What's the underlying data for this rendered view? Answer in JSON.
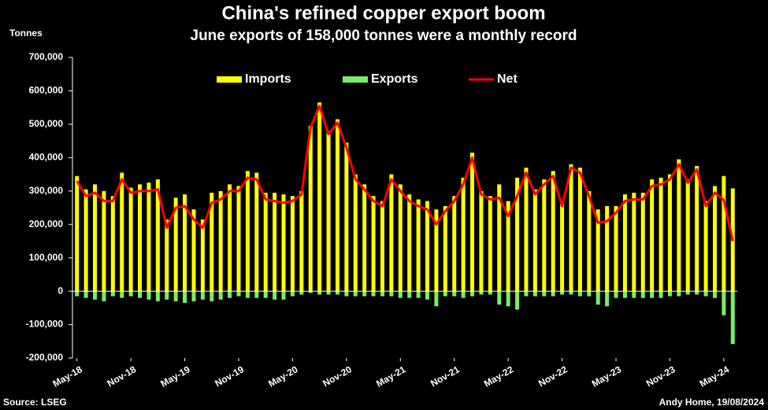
{
  "chart_data": {
    "type": "bar_line",
    "title": "China's refined copper export boom",
    "subtitle": "June exports of 158,000 tonnes were a monthly record",
    "y_axis_label": "Tonnes",
    "source": "Source: LSEG",
    "credit": "Andy Home, 19/08/2024",
    "categories": [
      "May-18",
      null,
      null,
      null,
      null,
      null,
      "Nov-18",
      null,
      null,
      null,
      null,
      null,
      "May-19",
      null,
      null,
      null,
      null,
      null,
      "Nov-19",
      null,
      null,
      null,
      null,
      null,
      "May-20",
      null,
      null,
      null,
      null,
      null,
      "Nov-20",
      null,
      null,
      null,
      null,
      null,
      "May-21",
      null,
      null,
      null,
      null,
      null,
      "Nov-21",
      null,
      null,
      null,
      null,
      null,
      "May-22",
      null,
      null,
      null,
      null,
      null,
      "Nov-22",
      null,
      null,
      null,
      null,
      null,
      "May-23",
      null,
      null,
      null,
      null,
      null,
      "Nov-23",
      null,
      null,
      null,
      null,
      null,
      "May-24",
      null
    ],
    "series": [
      {
        "name": "Imports",
        "kind": "bar",
        "color": "#ffff00",
        "values": [
          345000,
          305000,
          320000,
          300000,
          285000,
          355000,
          310000,
          320000,
          325000,
          335000,
          215000,
          280000,
          290000,
          245000,
          215000,
          295000,
          300000,
          320000,
          315000,
          360000,
          355000,
          295000,
          295000,
          290000,
          285000,
          300000,
          495000,
          565000,
          480000,
          515000,
          445000,
          350000,
          320000,
          285000,
          270000,
          350000,
          320000,
          290000,
          275000,
          270000,
          245000,
          255000,
          285000,
          340000,
          415000,
          300000,
          285000,
          320000,
          270000,
          340000,
          370000,
          305000,
          335000,
          360000,
          265000,
          380000,
          370000,
          300000,
          245000,
          255000,
          255000,
          290000,
          295000,
          295000,
          335000,
          340000,
          350000,
          395000,
          335000,
          375000,
          270000,
          315000,
          345000,
          308000
        ]
      },
      {
        "name": "Exports",
        "kind": "bar",
        "color": "#77ee66",
        "values": [
          -15000,
          -20000,
          -25000,
          -30000,
          -15000,
          -20000,
          -15000,
          -20000,
          -25000,
          -30000,
          -25000,
          -30000,
          -35000,
          -30000,
          -25000,
          -30000,
          -25000,
          -20000,
          -15000,
          -20000,
          -20000,
          -20000,
          -25000,
          -25000,
          -15000,
          -10000,
          -5000,
          -10000,
          -10000,
          -10000,
          -15000,
          -15000,
          -15000,
          -15000,
          -15000,
          -15000,
          -20000,
          -20000,
          -20000,
          -25000,
          -45000,
          -15000,
          -15000,
          -20000,
          -15000,
          -10000,
          -10000,
          -40000,
          -45000,
          -55000,
          -15000,
          -15000,
          -15000,
          -15000,
          -10000,
          -10000,
          -15000,
          -15000,
          -40000,
          -45000,
          -20000,
          -20000,
          -20000,
          -20000,
          -20000,
          -20000,
          -15000,
          -15000,
          -10000,
          -10000,
          -15000,
          -20000,
          -72000,
          -158000
        ]
      },
      {
        "name": "Net",
        "kind": "line",
        "color": "#ff0000",
        "values": [
          330000,
          285000,
          295000,
          270000,
          270000,
          335000,
          295000,
          300000,
          300000,
          305000,
          190000,
          250000,
          255000,
          215000,
          190000,
          265000,
          275000,
          300000,
          300000,
          340000,
          335000,
          275000,
          270000,
          265000,
          270000,
          290000,
          490000,
          555000,
          470000,
          505000,
          430000,
          335000,
          305000,
          270000,
          255000,
          335000,
          300000,
          270000,
          255000,
          245000,
          200000,
          240000,
          270000,
          320000,
          400000,
          290000,
          275000,
          280000,
          225000,
          285000,
          355000,
          290000,
          320000,
          345000,
          255000,
          370000,
          355000,
          285000,
          205000,
          210000,
          235000,
          270000,
          275000,
          275000,
          315000,
          320000,
          335000,
          380000,
          325000,
          365000,
          255000,
          295000,
          273000,
          150000
        ]
      }
    ],
    "ylim": [
      -200000,
      700000
    ],
    "yticks": [
      {
        "value": -200000,
        "label": "-200,000"
      },
      {
        "value": -100000,
        "label": "-100,000"
      },
      0,
      {
        "value": 100000,
        "label": "100,000"
      },
      {
        "value": 200000,
        "label": "200,000"
      },
      {
        "value": 300000,
        "label": "300,000"
      },
      {
        "value": 400000,
        "label": "400,000"
      },
      {
        "value": 500000,
        "label": "500,000"
      },
      {
        "value": 600000,
        "label": "600,000"
      },
      {
        "value": 700000,
        "label": "700,000"
      }
    ],
    "legend": "top"
  }
}
